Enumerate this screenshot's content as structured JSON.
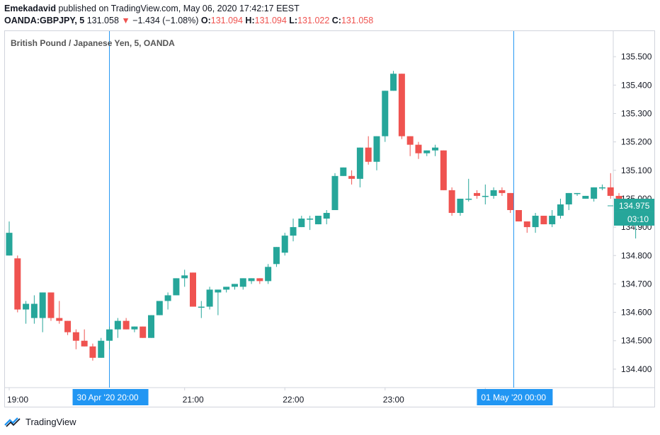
{
  "header": {
    "author": "Emekadavid",
    "published_text": "published on TradingView.com, May 06, 2020 17:42:17 EEST",
    "symbol": "OANDA:GBPJPY, 5",
    "last": "131.058",
    "change": "−1.434 (−1.08%)",
    "o_label": "O:",
    "o_value": "131.094",
    "h_label": "H:",
    "h_value": "131.094",
    "l_label": "L:",
    "l_value": "131.022",
    "c_label": "C:",
    "c_value": "131.058"
  },
  "footer": {
    "brand": "TradingView"
  },
  "colors": {
    "up": "#26a69a",
    "down": "#ef5350",
    "marker": "#2196f3",
    "price_tag": "#26a69a"
  },
  "chart_data": {
    "type": "candlestick",
    "title": "British Pound / Japanese Yen, 5, OANDA",
    "y_ticks": [
      "135.500",
      "135.400",
      "135.300",
      "135.200",
      "135.100",
      "135.000",
      "134.900",
      "134.800",
      "134.700",
      "134.600",
      "134.500",
      "134.400"
    ],
    "ylim": [
      134.335,
      135.59
    ],
    "x_ticks": [
      {
        "label": "19:00",
        "index": 0
      },
      {
        "label": "21:00",
        "index": 21
      },
      {
        "label": "22:00",
        "index": 33
      },
      {
        "label": "23:00",
        "index": 45
      },
      {
        "label": "00:00",
        "index": 57
      }
    ],
    "x_markers": [
      {
        "label": "30 Apr '20   20:00",
        "index": 12
      },
      {
        "label": "01 May '20   00:00",
        "index": 60.4
      }
    ],
    "last_price": "134.975",
    "countdown": "03:10",
    "candles": [
      {
        "o": 134.8,
        "h": 134.92,
        "l": 134.8,
        "c": 134.88
      },
      {
        "o": 134.79,
        "h": 134.8,
        "l": 134.6,
        "c": 134.61
      },
      {
        "o": 134.61,
        "h": 134.64,
        "l": 134.56,
        "c": 134.63
      },
      {
        "o": 134.58,
        "h": 134.66,
        "l": 134.56,
        "c": 134.63
      },
      {
        "o": 134.58,
        "h": 134.67,
        "l": 134.53,
        "c": 134.67
      },
      {
        "o": 134.67,
        "h": 134.67,
        "l": 134.57,
        "c": 134.58
      },
      {
        "o": 134.58,
        "h": 134.64,
        "l": 134.56,
        "c": 134.57
      },
      {
        "o": 134.57,
        "h": 134.57,
        "l": 134.52,
        "c": 134.53
      },
      {
        "o": 134.53,
        "h": 134.54,
        "l": 134.47,
        "c": 134.5
      },
      {
        "o": 134.5,
        "h": 134.54,
        "l": 134.48,
        "c": 134.48
      },
      {
        "o": 134.48,
        "h": 134.49,
        "l": 134.43,
        "c": 134.44
      },
      {
        "o": 134.44,
        "h": 134.51,
        "l": 134.44,
        "c": 134.5
      },
      {
        "o": 134.5,
        "h": 134.55,
        "l": 134.47,
        "c": 134.54
      },
      {
        "o": 134.54,
        "h": 134.58,
        "l": 134.51,
        "c": 134.57
      },
      {
        "o": 134.57,
        "h": 134.58,
        "l": 134.54,
        "c": 134.54
      },
      {
        "o": 134.54,
        "h": 134.55,
        "l": 134.53,
        "c": 134.55
      },
      {
        "o": 134.55,
        "h": 134.55,
        "l": 134.51,
        "c": 134.51
      },
      {
        "o": 134.51,
        "h": 134.59,
        "l": 134.51,
        "c": 134.59
      },
      {
        "o": 134.59,
        "h": 134.64,
        "l": 134.59,
        "c": 134.64
      },
      {
        "o": 134.64,
        "h": 134.67,
        "l": 134.61,
        "c": 134.66
      },
      {
        "o": 134.66,
        "h": 134.72,
        "l": 134.66,
        "c": 134.72
      },
      {
        "o": 134.72,
        "h": 134.75,
        "l": 134.69,
        "c": 134.73
      },
      {
        "o": 134.74,
        "h": 134.74,
        "l": 134.62,
        "c": 134.62
      },
      {
        "o": 134.62,
        "h": 134.64,
        "l": 134.58,
        "c": 134.62
      },
      {
        "o": 134.62,
        "h": 134.69,
        "l": 134.61,
        "c": 134.68
      },
      {
        "o": 134.67,
        "h": 134.68,
        "l": 134.59,
        "c": 134.68
      },
      {
        "o": 134.68,
        "h": 134.69,
        "l": 134.67,
        "c": 134.69
      },
      {
        "o": 134.69,
        "h": 134.7,
        "l": 134.68,
        "c": 134.7
      },
      {
        "o": 134.69,
        "h": 134.72,
        "l": 134.68,
        "c": 134.72
      },
      {
        "o": 134.71,
        "h": 134.72,
        "l": 134.7,
        "c": 134.72
      },
      {
        "o": 134.72,
        "h": 134.72,
        "l": 134.7,
        "c": 134.71
      },
      {
        "o": 134.71,
        "h": 134.77,
        "l": 134.7,
        "c": 134.76
      },
      {
        "o": 134.77,
        "h": 134.83,
        "l": 134.76,
        "c": 134.83
      },
      {
        "o": 134.81,
        "h": 134.88,
        "l": 134.8,
        "c": 134.87
      },
      {
        "o": 134.87,
        "h": 134.93,
        "l": 134.85,
        "c": 134.9
      },
      {
        "o": 134.9,
        "h": 134.94,
        "l": 134.9,
        "c": 134.93
      },
      {
        "o": 134.93,
        "h": 134.94,
        "l": 134.89,
        "c": 134.93
      },
      {
        "o": 134.91,
        "h": 134.93,
        "l": 134.91,
        "c": 134.94
      },
      {
        "o": 134.93,
        "h": 134.96,
        "l": 134.91,
        "c": 134.95
      },
      {
        "o": 134.96,
        "h": 135.09,
        "l": 134.96,
        "c": 135.08
      },
      {
        "o": 135.08,
        "h": 135.11,
        "l": 135.08,
        "c": 135.11
      },
      {
        "o": 135.08,
        "h": 135.1,
        "l": 135.05,
        "c": 135.07
      },
      {
        "o": 135.07,
        "h": 135.18,
        "l": 135.04,
        "c": 135.18
      },
      {
        "o": 135.18,
        "h": 135.22,
        "l": 135.12,
        "c": 135.13
      },
      {
        "o": 135.13,
        "h": 135.22,
        "l": 135.1,
        "c": 135.22
      },
      {
        "o": 135.22,
        "h": 135.38,
        "l": 135.2,
        "c": 135.38
      },
      {
        "o": 135.38,
        "h": 135.45,
        "l": 135.38,
        "c": 135.44
      },
      {
        "o": 135.44,
        "h": 135.44,
        "l": 135.21,
        "c": 135.22
      },
      {
        "o": 135.22,
        "h": 135.22,
        "l": 135.15,
        "c": 135.19
      },
      {
        "o": 135.19,
        "h": 135.2,
        "l": 135.14,
        "c": 135.16
      },
      {
        "o": 135.16,
        "h": 135.17,
        "l": 135.15,
        "c": 135.17
      },
      {
        "o": 135.17,
        "h": 135.19,
        "l": 135.15,
        "c": 135.18
      },
      {
        "o": 135.17,
        "h": 135.17,
        "l": 135.03,
        "c": 135.03
      },
      {
        "o": 135.03,
        "h": 135.04,
        "l": 134.94,
        "c": 134.95
      },
      {
        "o": 134.95,
        "h": 135.0,
        "l": 134.94,
        "c": 135.0
      },
      {
        "o": 135.0,
        "h": 135.07,
        "l": 134.99,
        "c": 135.0
      },
      {
        "o": 135.02,
        "h": 135.03,
        "l": 135.0,
        "c": 135.01
      },
      {
        "o": 135.01,
        "h": 135.05,
        "l": 134.98,
        "c": 135.01
      },
      {
        "o": 135.01,
        "h": 135.04,
        "l": 135.0,
        "c": 135.03
      },
      {
        "o": 135.03,
        "h": 135.04,
        "l": 135.01,
        "c": 135.02
      },
      {
        "o": 135.02,
        "h": 135.02,
        "l": 134.95,
        "c": 134.96
      },
      {
        "o": 134.96,
        "h": 134.96,
        "l": 134.92,
        "c": 134.92
      },
      {
        "o": 134.92,
        "h": 134.92,
        "l": 134.88,
        "c": 134.9
      },
      {
        "o": 134.9,
        "h": 134.95,
        "l": 134.88,
        "c": 134.94
      },
      {
        "o": 134.94,
        "h": 134.94,
        "l": 134.91,
        "c": 134.91
      },
      {
        "o": 134.91,
        "h": 134.96,
        "l": 134.9,
        "c": 134.94
      },
      {
        "o": 134.94,
        "h": 135.0,
        "l": 134.93,
        "c": 134.98
      },
      {
        "o": 134.98,
        "h": 135.02,
        "l": 134.96,
        "c": 135.02
      },
      {
        "o": 135.02,
        "h": 135.02,
        "l": 135.01,
        "c": 135.02
      },
      {
        "o": 135.0,
        "h": 135.01,
        "l": 135.0,
        "c": 135.01
      },
      {
        "o": 135.0,
        "h": 135.04,
        "l": 134.99,
        "c": 135.04
      },
      {
        "o": 135.04,
        "h": 135.05,
        "l": 135.03,
        "c": 135.04
      },
      {
        "o": 135.04,
        "h": 135.09,
        "l": 135.0,
        "c": 135.01
      },
      {
        "o": 135.01,
        "h": 135.02,
        "l": 134.99,
        "c": 135.0
      },
      {
        "o": 135.0,
        "h": 135.0,
        "l": 134.92,
        "c": 134.92
      },
      {
        "o": 134.92,
        "h": 134.98,
        "l": 134.86,
        "c": 134.975
      }
    ]
  }
}
